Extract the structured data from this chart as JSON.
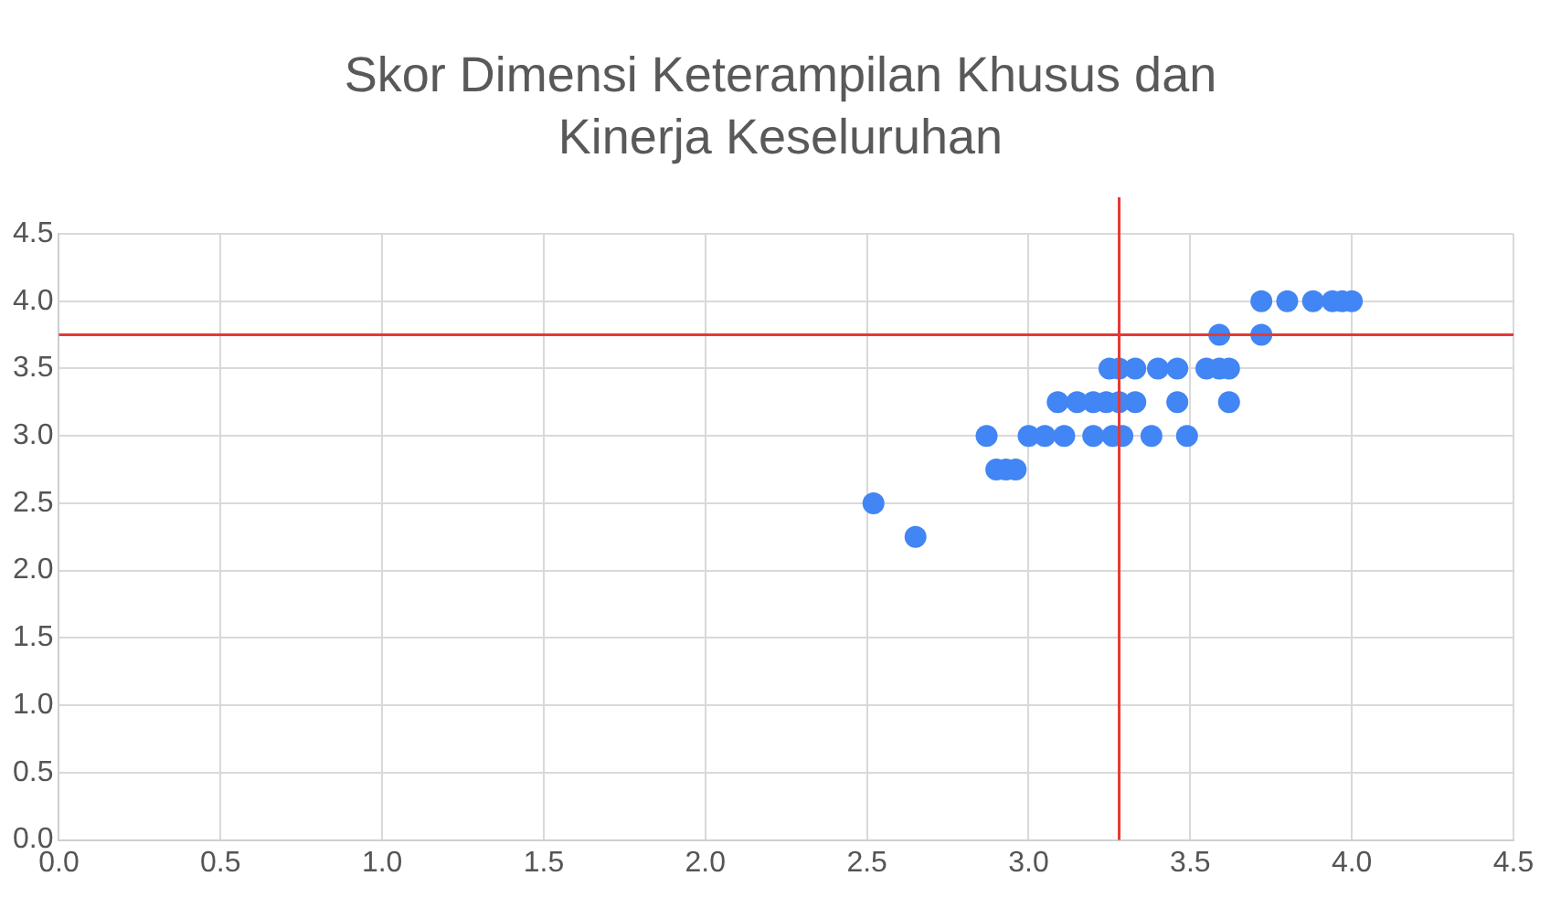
{
  "chart_data": {
    "type": "scatter",
    "title": "Skor Dimensi Keterampilan Khusus dan Kinerja Keseluruhan",
    "series": [
      {
        "color": "#4285f4",
        "x": [
          3.72,
          3.8,
          3.88,
          3.94,
          3.97,
          4.0,
          3.59,
          3.72,
          3.25,
          3.28,
          3.33,
          3.4,
          3.46,
          3.55,
          3.59,
          3.62,
          3.09,
          3.15,
          3.2,
          3.24,
          3.28,
          3.33,
          3.46,
          3.62,
          2.87,
          3.0,
          3.05,
          3.11,
          3.2,
          3.26,
          3.29,
          3.38,
          3.49,
          2.9,
          2.93,
          2.96,
          2.52,
          2.65
        ],
        "values": [
          4.0,
          4.0,
          4.0,
          4.0,
          4.0,
          4.0,
          3.75,
          3.75,
          3.5,
          3.5,
          3.5,
          3.5,
          3.5,
          3.5,
          3.5,
          3.5,
          3.25,
          3.25,
          3.25,
          3.25,
          3.25,
          3.25,
          3.25,
          3.25,
          3.0,
          3.0,
          3.0,
          3.0,
          3.0,
          3.0,
          3.0,
          3.0,
          3.0,
          2.75,
          2.75,
          2.75,
          2.5,
          2.25
        ]
      }
    ],
    "xlim": [
      0,
      4.5
    ],
    "xticks": [
      {
        "value": 0,
        "label": "0.0"
      },
      0.5,
      {
        "value": 1,
        "label": "1.0"
      },
      1.5,
      {
        "value": 2,
        "label": "2.0"
      },
      2.5,
      {
        "value": 3,
        "label": "3.0"
      },
      3.5,
      {
        "value": 4,
        "label": "4.0"
      },
      4.5
    ],
    "ylim": [
      0,
      4.5
    ],
    "yticks": [
      {
        "value": 0,
        "label": "0.0"
      },
      0.5,
      {
        "value": 1,
        "label": "1.0"
      },
      1.5,
      {
        "value": 2,
        "label": "2.0"
      },
      2.5,
      {
        "value": 3,
        "label": "3.0"
      },
      3.5,
      {
        "value": 4,
        "label": "4.0"
      },
      4.5
    ],
    "grid": true,
    "marker": "circle",
    "ref_lines": [
      {
        "axis": "x",
        "value": 3.28,
        "color": "#e53935"
      },
      {
        "axis": "y",
        "value": 3.75,
        "color": "#e53935"
      }
    ]
  }
}
